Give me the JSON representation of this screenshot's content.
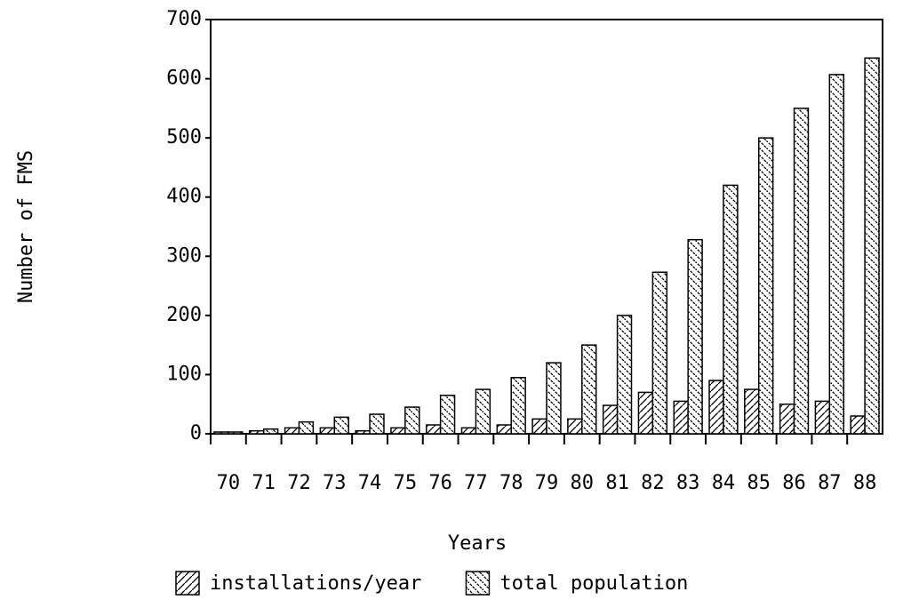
{
  "chart_data": {
    "type": "bar",
    "x_label": "Years",
    "y_label": "Number of FMS",
    "categories": [
      "70",
      "71",
      "72",
      "73",
      "74",
      "75",
      "76",
      "77",
      "78",
      "79",
      "80",
      "81",
      "82",
      "83",
      "84",
      "85",
      "86",
      "87",
      "88"
    ],
    "series": [
      {
        "name": "installations/year",
        "color": "#000000",
        "hatch": "forward",
        "values": [
          3,
          5,
          10,
          10,
          5,
          10,
          15,
          10,
          15,
          25,
          25,
          48,
          70,
          55,
          90,
          75,
          50,
          55,
          30
        ]
      },
      {
        "name": "total population",
        "color": "#000000",
        "hatch": "backward",
        "values": [
          3,
          8,
          20,
          28,
          33,
          45,
          65,
          75,
          95,
          120,
          150,
          200,
          273,
          328,
          420,
          500,
          550,
          607,
          635
        ]
      }
    ],
    "ylim": [
      0,
      700
    ],
    "yticks": [
      0,
      100,
      200,
      300,
      400,
      500,
      600,
      700
    ],
    "grid": false
  }
}
